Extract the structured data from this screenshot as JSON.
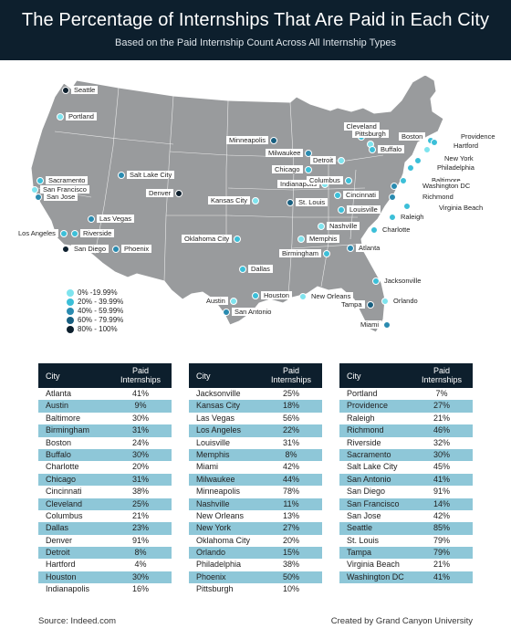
{
  "header": {
    "title": "The Percentage of Internships That Are Paid in Each City",
    "subtitle": "Based on the Paid Internship Count Across All Internship Types"
  },
  "colors": {
    "header_bg": "#0d1f2d",
    "map_fill": "#999b9d",
    "bins": [
      "#7fe4ee",
      "#3cbfd8",
      "#2a8bb0",
      "#185f80",
      "#0d1f2d"
    ],
    "row_alt": "#8ec7d8"
  },
  "legend": {
    "items": [
      "0% -19.99%",
      "20% - 39.99%",
      "40% - 59.99%",
      "60% - 79.99%",
      "80% - 100%"
    ]
  },
  "table_header": {
    "city": "City",
    "paid": "Paid Internships"
  },
  "tables": [
    [
      [
        "Atlanta",
        "41%"
      ],
      [
        "Austin",
        "9%"
      ],
      [
        "Baltimore",
        "30%"
      ],
      [
        "Birmingham",
        "31%"
      ],
      [
        "Boston",
        "24%"
      ],
      [
        "Buffalo",
        "30%"
      ],
      [
        "Charlotte",
        "20%"
      ],
      [
        "Chicago",
        "31%"
      ],
      [
        "Cincinnati",
        "38%"
      ],
      [
        "Cleveland",
        "25%"
      ],
      [
        "Columbus",
        "21%"
      ],
      [
        "Dallas",
        "23%"
      ],
      [
        "Denver",
        "91%"
      ],
      [
        "Detroit",
        "8%"
      ],
      [
        "Hartford",
        "4%"
      ],
      [
        "Houston",
        "30%"
      ],
      [
        "Indianapolis",
        "16%"
      ]
    ],
    [
      [
        "Jacksonville",
        "25%"
      ],
      [
        "Kansas City",
        "18%"
      ],
      [
        "Las Vegas",
        "56%"
      ],
      [
        "Los Angeles",
        "22%"
      ],
      [
        "Louisville",
        "31%"
      ],
      [
        "Memphis",
        "8%"
      ],
      [
        "Miami",
        "42%"
      ],
      [
        "Milwaukee",
        "44%"
      ],
      [
        "Minneapolis",
        "78%"
      ],
      [
        "Nashville",
        "11%"
      ],
      [
        "New Orleans",
        "13%"
      ],
      [
        "New York",
        "27%"
      ],
      [
        "Oklahoma City",
        "20%"
      ],
      [
        "Orlando",
        "15%"
      ],
      [
        "Philadelphia",
        "38%"
      ],
      [
        "Phoenix",
        "50%"
      ],
      [
        "Pittsburgh",
        "10%"
      ]
    ],
    [
      [
        "Portland",
        "7%"
      ],
      [
        "Providence",
        "27%"
      ],
      [
        "Raleigh",
        "21%"
      ],
      [
        "Richmond",
        "46%"
      ],
      [
        "Riverside",
        "32%"
      ],
      [
        "Sacramento",
        "30%"
      ],
      [
        "Salt Lake City",
        "45%"
      ],
      [
        "San Antonio",
        "41%"
      ],
      [
        "San Diego",
        "91%"
      ],
      [
        "San Francisco",
        "14%"
      ],
      [
        "San Jose",
        "42%"
      ],
      [
        "Seattle",
        "85%"
      ],
      [
        "St. Louis",
        "79%"
      ],
      [
        "Tampa",
        "79%"
      ],
      [
        "Virginia Beach",
        "21%"
      ],
      [
        "Washington DC",
        "41%"
      ]
    ]
  ],
  "footer": {
    "source": "Source: Indeed.com",
    "credit": "Created by Grand Canyon University"
  }
}
